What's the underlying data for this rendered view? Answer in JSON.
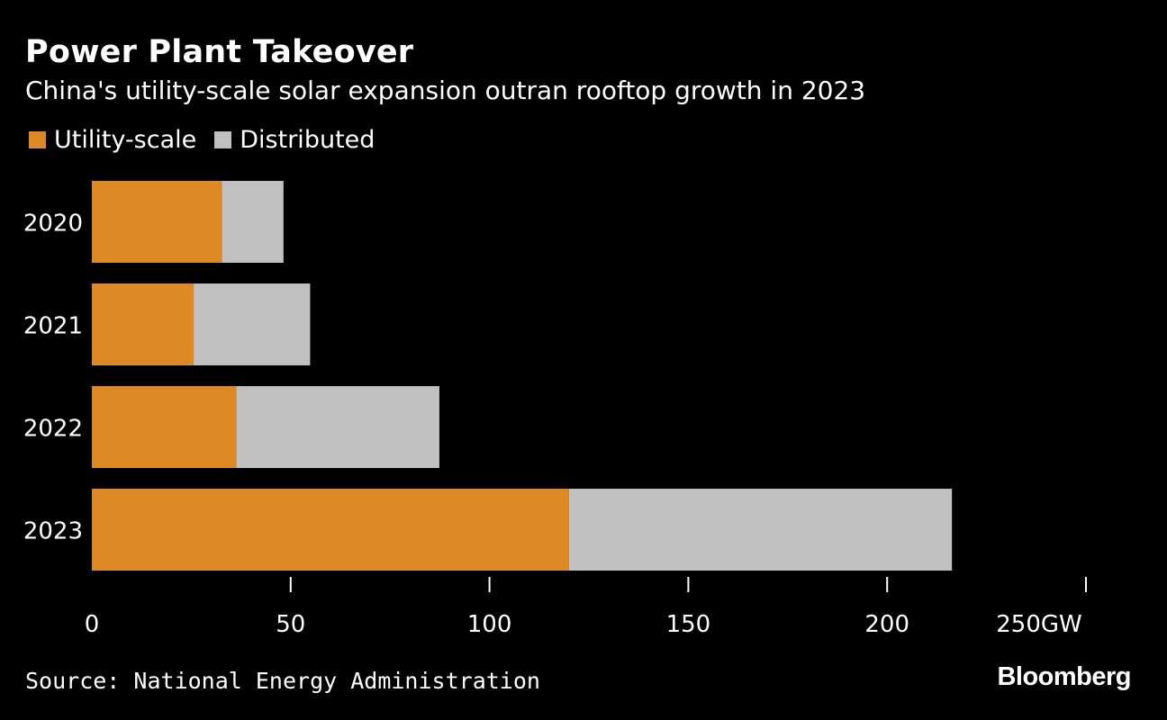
{
  "header": {
    "title": "Power Plant Takeover",
    "subtitle": "China's utility-scale solar expansion outran rooftop growth in 2023"
  },
  "footer": {
    "source": "Source: National Energy Administration",
    "brand": "Bloomberg"
  },
  "chart_data": {
    "type": "bar",
    "orientation": "horizontal",
    "stacked": true,
    "title": "Power Plant Takeover",
    "subtitle": "China's utility-scale solar expansion outran rooftop growth in 2023",
    "categories": [
      "2020",
      "2021",
      "2022",
      "2023"
    ],
    "series": [
      {
        "name": "Utility-scale",
        "color": "#dd8a24",
        "values": [
          32.7,
          25.6,
          36.3,
          120.0
        ]
      },
      {
        "name": "Distributed",
        "color": "#c0c0c0",
        "values": [
          15.5,
          29.3,
          51.1,
          96.3
        ]
      }
    ],
    "xlim": [
      0,
      250
    ],
    "xticks": [
      "0",
      "50",
      "100",
      "150",
      "200",
      "250GW"
    ],
    "xtick_values": [
      0,
      50,
      100,
      150,
      200,
      250
    ],
    "xlabel": "",
    "ylabel": "",
    "grid": false,
    "legend": "top-left"
  }
}
